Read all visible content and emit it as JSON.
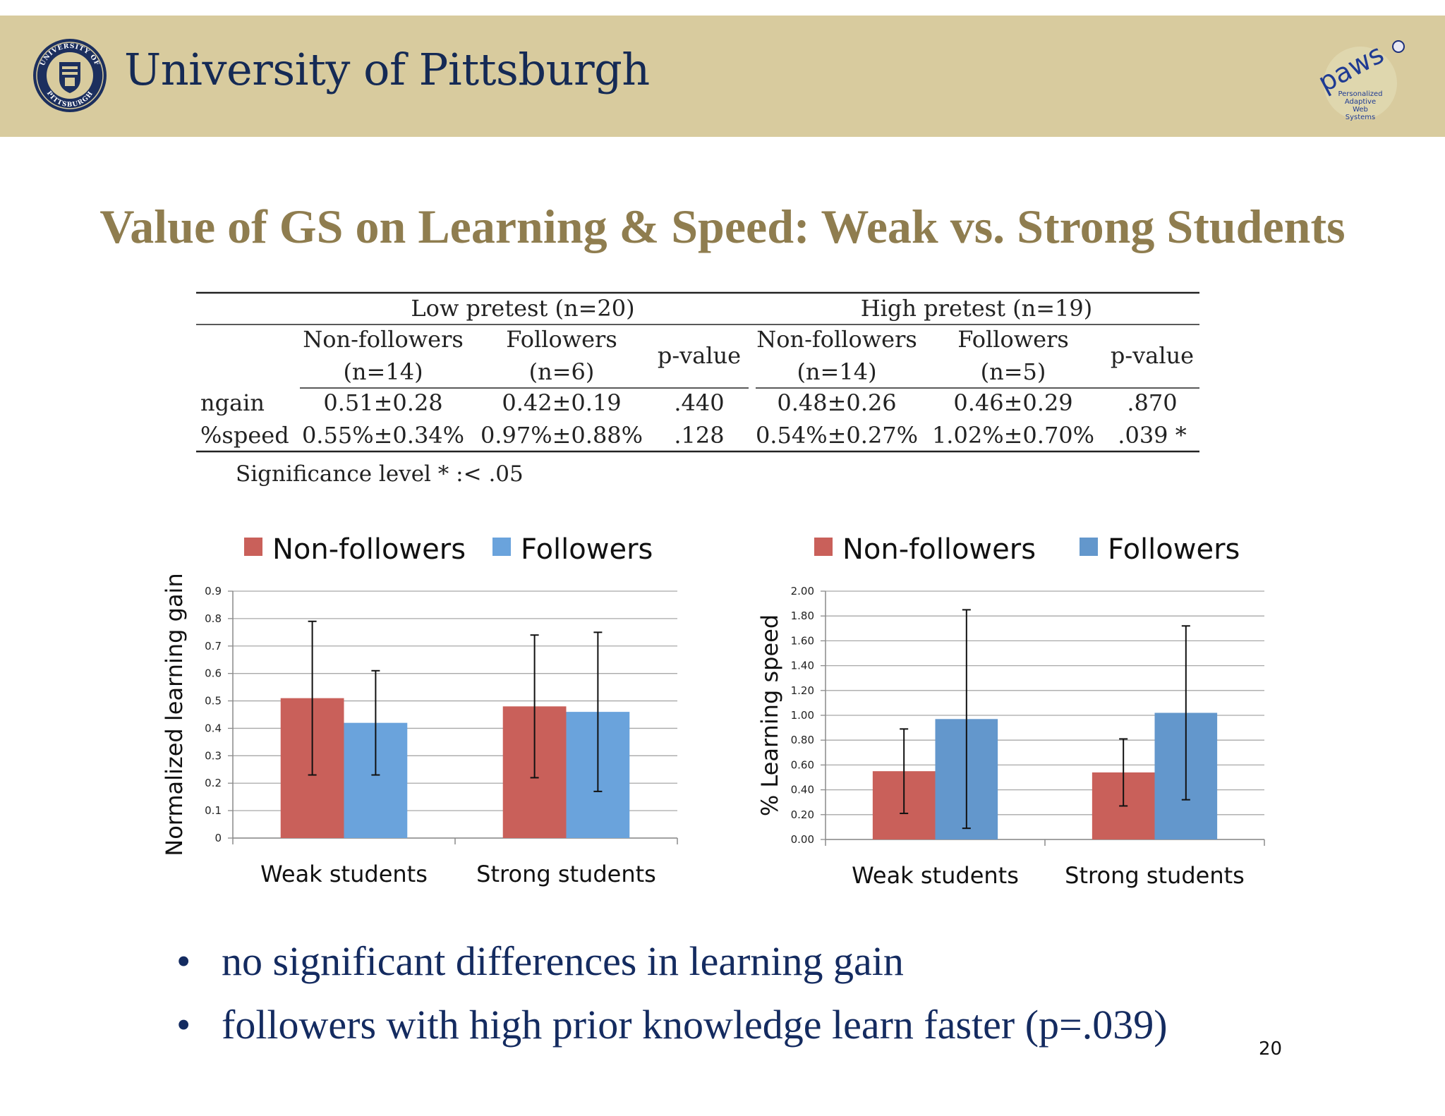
{
  "header": {
    "university_name": "University of Pittsburgh",
    "seal_text_top": "UNIVERSITY OF",
    "seal_text_bottom": "PITTSBURGH",
    "paws_letters": "paws",
    "paws_caption": [
      "Personalized",
      "Adaptive",
      "Web",
      "Systems"
    ]
  },
  "title": "Value of GS on Learning & Speed: Weak vs. Strong Students",
  "table": {
    "groups": [
      "Low pretest (n=20)",
      "High pretest (n=19)"
    ],
    "columns": [
      [
        "Non-followers",
        "(n=14)"
      ],
      [
        "Followers",
        "(n=6)"
      ],
      [
        "p-value"
      ],
      [
        "Non-followers",
        "(n=14)"
      ],
      [
        "Followers",
        "(n=5)"
      ],
      [
        "p-value"
      ]
    ],
    "rows": [
      {
        "label": "ngain",
        "cells": [
          "0.51±0.28",
          "0.42±0.19",
          ".440",
          "0.48±0.26",
          "0.46±0.29",
          ".870"
        ]
      },
      {
        "label": "%speed",
        "cells": [
          "0.55%±0.34%",
          "0.97%±0.88%",
          ".128",
          "0.54%±0.27%",
          "1.02%±0.70%",
          ".039 *"
        ]
      }
    ],
    "footnote": "Significance level * :< .05"
  },
  "chart_data": [
    {
      "type": "bar",
      "categories": [
        "Weak students",
        "Strong students"
      ],
      "series": [
        {
          "name": "Non-followers",
          "color": "#c9605a",
          "values": [
            0.51,
            0.48
          ],
          "error": [
            0.28,
            0.26
          ]
        },
        {
          "name": "Followers",
          "color": "#6aa3dc",
          "values": [
            0.42,
            0.46
          ],
          "error": [
            0.19,
            0.29
          ]
        }
      ],
      "ylabel": "Normalized learning gain",
      "ylim": [
        0,
        0.9
      ],
      "yticks": [
        "0",
        "0.1",
        "0.2",
        "0.3",
        "0.4",
        "0.5",
        "0.6",
        "0.7",
        "0.8",
        "0.9"
      ],
      "legend": "top",
      "grid": true
    },
    {
      "type": "bar",
      "categories": [
        "Weak students",
        "Strong students"
      ],
      "series": [
        {
          "name": "Non-followers",
          "color": "#c9605a",
          "values": [
            0.55,
            0.54
          ],
          "error": [
            0.34,
            0.27
          ]
        },
        {
          "name": "Followers",
          "color": "#6397cc",
          "values": [
            0.97,
            1.02
          ],
          "error": [
            0.88,
            0.7
          ]
        }
      ],
      "ylabel": "% Learning speed",
      "ylim": [
        0,
        2.0
      ],
      "yticks": [
        "0.00",
        "0.20",
        "0.40",
        "0.60",
        "0.80",
        "1.00",
        "1.20",
        "1.40",
        "1.60",
        "1.80",
        "2.00"
      ],
      "legend": "top",
      "grid": true
    }
  ],
  "bullets": [
    "no significant differences in learning gain",
    "followers with high prior knowledge learn faster (p=.039)"
  ],
  "bullet_symbol": "•",
  "slide_number": "20"
}
